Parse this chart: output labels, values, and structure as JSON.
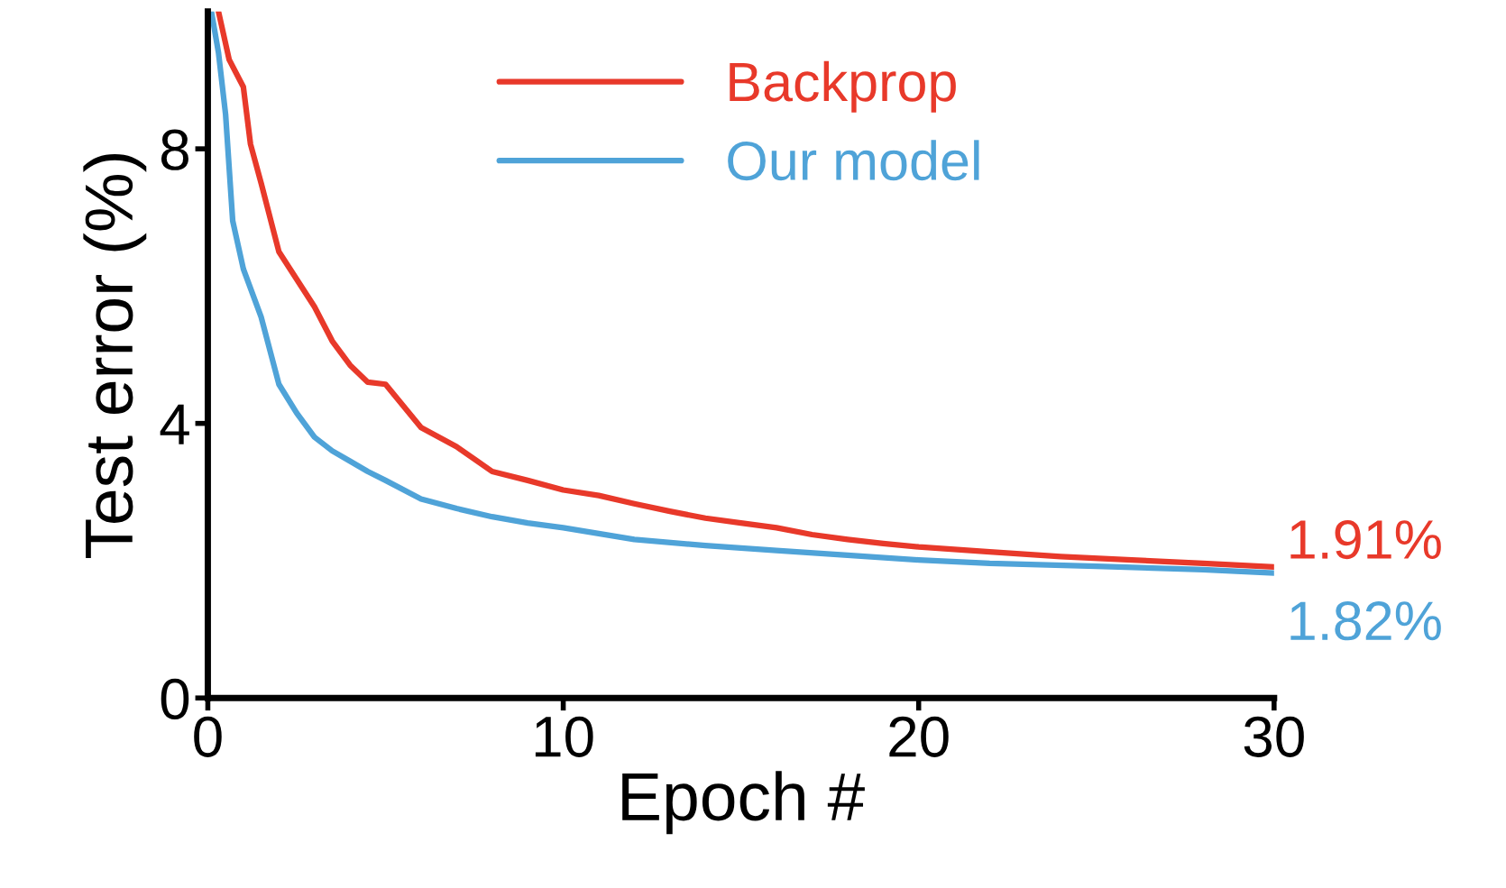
{
  "chart_data": {
    "type": "line",
    "xlabel": "Epoch #",
    "ylabel": "Test error (%)",
    "xlim": [
      0,
      30
    ],
    "ylim": [
      0,
      10
    ],
    "xticks": [
      0,
      10,
      20,
      30
    ],
    "yticks": [
      0,
      4,
      8
    ],
    "grid": false,
    "legend": "top",
    "marker": "none",
    "line_style": "solid",
    "series": [
      {
        "name": "Backprop",
        "color": "#e8392a",
        "x": [
          0.3,
          0.6,
          1,
          1.2,
          1.5,
          2,
          2.5,
          3,
          3.5,
          4,
          4.5,
          5,
          6,
          7,
          8,
          9,
          10,
          11,
          12,
          13,
          14,
          15,
          16,
          17,
          18,
          19,
          20,
          22,
          24,
          26,
          28,
          30
        ],
        "values": [
          10,
          9.3,
          8.9,
          8.07,
          7.5,
          6.5,
          6.1,
          5.7,
          5.2,
          4.85,
          4.6,
          4.57,
          3.94,
          3.66,
          3.3,
          3.17,
          3.03,
          2.95,
          2.83,
          2.72,
          2.62,
          2.55,
          2.48,
          2.38,
          2.31,
          2.25,
          2.2,
          2.13,
          2.06,
          2.01,
          1.96,
          1.91
        ]
      },
      {
        "name": "Our model",
        "color": "#4fa3d8",
        "x": [
          0.1,
          0.3,
          0.5,
          0.7,
          1,
          1.5,
          2,
          2.5,
          3,
          3.5,
          4,
          4.5,
          5,
          6,
          7,
          8,
          9,
          10,
          12,
          14,
          16,
          18,
          20,
          22,
          25,
          28,
          30
        ],
        "values": [
          10,
          9.4,
          8.5,
          6.95,
          6.25,
          5.55,
          4.57,
          4.15,
          3.8,
          3.6,
          3.45,
          3.3,
          3.17,
          2.9,
          2.76,
          2.64,
          2.55,
          2.48,
          2.31,
          2.22,
          2.15,
          2.08,
          2.01,
          1.96,
          1.92,
          1.87,
          1.82
        ]
      }
    ],
    "annotations": [
      {
        "text": "1.91%",
        "x": 30,
        "y": 1.91
      },
      {
        "text": "1.82%",
        "x": 30,
        "y": 1.82
      }
    ]
  }
}
